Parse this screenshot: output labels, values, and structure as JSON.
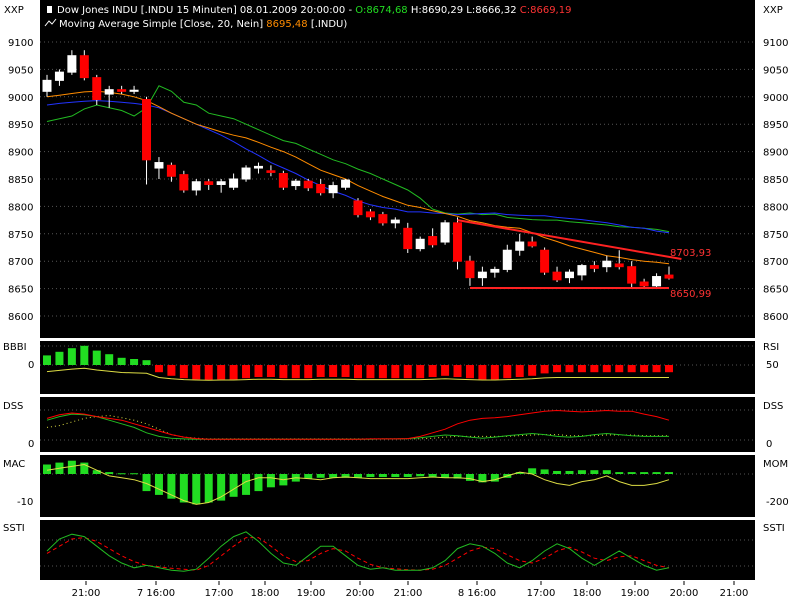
{
  "header": {
    "instrument": "Dow Jones INDU [.INDU  15 Minuten] 08.01.2009 20:00:00 - ",
    "open": "O:8674,68",
    "high": " H:8690,29",
    "low": " L:8666,32",
    "close": " C:8669,19",
    "ma_label": "Moving Average Simple [Close, 20, Nein] ",
    "ma_value": "8695,48",
    "ma_suffix": " [.INDU)"
  },
  "axis_corner_label": "XXP",
  "price_ticks": [
    9100,
    9050,
    9000,
    8950,
    8900,
    8850,
    8800,
    8750,
    8700,
    8650,
    8600
  ],
  "time_ticks": [
    "21:00",
    "7 16:00",
    "17:00",
    "18:00",
    "19:00",
    "20:00",
    "21:00",
    "8 16:00",
    "17:00",
    "18:00",
    "19:00",
    "20:00",
    "21:00"
  ],
  "annotations": {
    "resistance": "8703,93",
    "support": "8650,99"
  },
  "panels": [
    {
      "id": "bbbi",
      "left_label": "BBBI",
      "left_tick": "0",
      "right_label": "RSI",
      "right_tick": "50"
    },
    {
      "id": "dss",
      "left_label": "DSS",
      "left_tick": "0",
      "right_label": "DSS",
      "right_tick": "0"
    },
    {
      "id": "mac",
      "left_label": "MAC",
      "left_tick": "-10",
      "right_label": "MOM",
      "right_tick": "-200"
    },
    {
      "id": "ssti",
      "left_label": "SSTI",
      "left_tick": "",
      "right_label": "SSTI",
      "right_tick": ""
    }
  ],
  "colors": {
    "up": "#ffffff",
    "down": "#ff0000",
    "ma": "#ff8c00",
    "blue_line": "#2233ff",
    "green_line": "#22bb22",
    "hist_pos": "#22dd22",
    "hist_neg": "#ff0000",
    "trend": "#ff2222",
    "grid": "#555555"
  },
  "chart_data": {
    "type": "candlestick",
    "title": "Dow Jones INDU [.INDU  15 Minuten] 08.01.2009 20:00:00",
    "ylim": [
      8560,
      9140
    ],
    "candles": [
      [
        9010,
        9040,
        9000,
        9030
      ],
      [
        9030,
        9050,
        9020,
        9045
      ],
      [
        9045,
        9085,
        9040,
        9075
      ],
      [
        9075,
        9085,
        9030,
        9035
      ],
      [
        9035,
        9040,
        8985,
        8995
      ],
      [
        9005,
        9020,
        8980,
        9013
      ],
      [
        9013,
        9020,
        9005,
        9010
      ],
      [
        9010,
        9020,
        9005,
        9012
      ],
      [
        8995,
        9000,
        8840,
        8885
      ],
      [
        8870,
        8890,
        8850,
        8880
      ],
      [
        8875,
        8880,
        8845,
        8855
      ],
      [
        8858,
        8865,
        8825,
        8830
      ],
      [
        8830,
        8850,
        8820,
        8845
      ],
      [
        8845,
        8850,
        8830,
        8840
      ],
      [
        8840,
        8850,
        8825,
        8845
      ],
      [
        8835,
        8860,
        8830,
        8850
      ],
      [
        8850,
        8875,
        8845,
        8870
      ],
      [
        8870,
        8880,
        8860,
        8873
      ],
      [
        8865,
        8875,
        8855,
        8862
      ],
      [
        8860,
        8865,
        8830,
        8835
      ],
      [
        8838,
        8850,
        8830,
        8846
      ],
      [
        8846,
        8850,
        8828,
        8834
      ],
      [
        8840,
        8850,
        8820,
        8825
      ],
      [
        8825,
        8845,
        8815,
        8838
      ],
      [
        8835,
        8850,
        8830,
        8848
      ],
      [
        8810,
        8815,
        8780,
        8785
      ],
      [
        8790,
        8795,
        8775,
        8781
      ],
      [
        8785,
        8790,
        8765,
        8770
      ],
      [
        8770,
        8780,
        8760,
        8775
      ],
      [
        8760,
        8770,
        8715,
        8723
      ],
      [
        8723,
        8745,
        8718,
        8740
      ],
      [
        8745,
        8760,
        8725,
        8730
      ],
      [
        8735,
        8775,
        8730,
        8770
      ],
      [
        8770,
        8780,
        8685,
        8700
      ],
      [
        8700,
        8710,
        8655,
        8670
      ],
      [
        8670,
        8690,
        8655,
        8680
      ],
      [
        8680,
        8690,
        8670,
        8685
      ],
      [
        8685,
        8730,
        8680,
        8720
      ],
      [
        8720,
        8750,
        8710,
        8735
      ],
      [
        8735,
        8745,
        8725,
        8728
      ],
      [
        8720,
        8725,
        8675,
        8680
      ],
      [
        8680,
        8690,
        8662,
        8666
      ],
      [
        8670,
        8685,
        8660,
        8680
      ],
      [
        8675,
        8695,
        8665,
        8692
      ],
      [
        8692,
        8700,
        8680,
        8687
      ],
      [
        8690,
        8710,
        8680,
        8700
      ],
      [
        8695,
        8720,
        8685,
        8690
      ],
      [
        8690,
        8700,
        8650,
        8660
      ],
      [
        8662,
        8668,
        8650,
        8655
      ],
      [
        8655,
        8678,
        8650,
        8672
      ],
      [
        8674.68,
        8690.29,
        8666.32,
        8669.19
      ]
    ],
    "ma20": [
      9000,
      9003,
      9006,
      9009,
      9010,
      9008,
      9005,
      9000,
      8993,
      8982,
      8970,
      8960,
      8950,
      8943,
      8936,
      8930,
      8925,
      8917,
      8908,
      8900,
      8890,
      8878,
      8866,
      8858,
      8850,
      8838,
      8828,
      8818,
      8810,
      8802,
      8798,
      8792,
      8787,
      8782,
      8774,
      8770,
      8765,
      8762,
      8760,
      8752,
      8743,
      8736,
      8728,
      8722,
      8716,
      8710,
      8707,
      8703,
      8700,
      8698,
      8695.48
    ],
    "blue_series": [
      8985,
      8988,
      8990,
      8992,
      8993,
      8992,
      8990,
      8988,
      8985,
      8980,
      8970,
      8960,
      8950,
      8940,
      8930,
      8918,
      8905,
      8893,
      8880,
      8870,
      8860,
      8848,
      8838,
      8828,
      8820,
      8810,
      8803,
      8798,
      8795,
      8790,
      8790,
      8788,
      8787,
      8785,
      8786,
      8787,
      8788,
      8785,
      8784,
      8783,
      8783,
      8780,
      8778,
      8776,
      8773,
      8770,
      8766,
      8762,
      8760,
      8755,
      8752
    ],
    "green_series": [
      8955,
      8960,
      8965,
      8978,
      8985,
      8980,
      8975,
      8965,
      8980,
      9020,
      9010,
      8990,
      8985,
      8970,
      8965,
      8960,
      8950,
      8940,
      8930,
      8920,
      8915,
      8905,
      8895,
      8885,
      8878,
      8868,
      8860,
      8850,
      8840,
      8830,
      8815,
      8795,
      8788,
      8786,
      8788,
      8785,
      8786,
      8780,
      8778,
      8776,
      8775,
      8775,
      8772,
      8770,
      8768,
      8766,
      8763,
      8762,
      8760,
      8758,
      8754
    ],
    "trendline_resistance": [
      [
        33,
        8775
      ],
      [
        51,
        8703.93
      ]
    ],
    "trendline_support": [
      [
        34,
        8650.99
      ],
      [
        50,
        8650.99
      ]
    ],
    "bbbi": [
      0.4,
      0.55,
      0.7,
      0.8,
      0.6,
      0.45,
      0.3,
      0.25,
      0.2,
      -0.3,
      -0.45,
      -0.55,
      -0.6,
      -0.62,
      -0.6,
      -0.6,
      -0.55,
      -0.5,
      -0.5,
      -0.55,
      -0.55,
      -0.55,
      -0.5,
      -0.5,
      -0.5,
      -0.55,
      -0.55,
      -0.55,
      -0.55,
      -0.55,
      -0.55,
      -0.5,
      -0.45,
      -0.5,
      -0.55,
      -0.6,
      -0.6,
      -0.55,
      -0.5,
      -0.45,
      -0.35,
      -0.3,
      -0.3,
      -0.3,
      -0.3,
      -0.3,
      -0.3,
      -0.3,
      -0.3,
      -0.3,
      -0.3
    ],
    "dss_red": [
      0.6,
      0.7,
      0.75,
      0.72,
      0.65,
      0.6,
      0.55,
      0.45,
      0.35,
      0.25,
      0.15,
      0.08,
      0.04,
      0.02,
      0.02,
      0.02,
      0.02,
      0.02,
      0.02,
      0.02,
      0.02,
      0.02,
      0.02,
      0.02,
      0.02,
      0.02,
      0.03,
      0.03,
      0.03,
      0.04,
      0.1,
      0.2,
      0.3,
      0.45,
      0.55,
      0.6,
      0.62,
      0.65,
      0.7,
      0.75,
      0.8,
      0.82,
      0.8,
      0.78,
      0.8,
      0.82,
      0.8,
      0.8,
      0.72,
      0.65,
      0.55
    ],
    "dss_green": [
      0.55,
      0.65,
      0.72,
      0.7,
      0.65,
      0.55,
      0.45,
      0.35,
      0.2,
      0.1,
      0.05,
      0.03,
      0.02,
      0.02,
      0.02,
      0.02,
      0.02,
      0.02,
      0.02,
      0.02,
      0.02,
      0.02,
      0.02,
      0.02,
      0.02,
      0.02,
      0.02,
      0.03,
      0.03,
      0.04,
      0.06,
      0.1,
      0.14,
      0.12,
      0.08,
      0.05,
      0.08,
      0.12,
      0.15,
      0.18,
      0.15,
      0.1,
      0.08,
      0.1,
      0.15,
      0.18,
      0.15,
      0.12,
      0.1,
      0.1,
      0.1
    ],
    "dss_dotted": [
      0.35,
      0.4,
      0.5,
      0.6,
      0.65,
      0.68,
      0.62,
      0.55,
      0.45,
      0.3,
      0.15,
      0.08,
      0.05,
      0.03,
      0.03,
      0.03,
      0.03,
      0.03,
      0.03,
      0.03,
      0.03,
      0.03,
      0.03,
      0.03,
      0.03,
      0.03,
      0.03,
      0.03,
      0.03,
      0.03,
      0.03,
      0.05,
      0.08,
      0.1,
      0.1,
      0.1,
      0.1,
      0.1,
      0.12,
      0.14,
      0.15,
      0.15,
      0.12,
      0.12,
      0.12,
      0.14,
      0.14,
      0.14,
      0.12,
      0.12,
      0.12
    ],
    "mac_hist": [
      0.25,
      0.3,
      0.35,
      0.3,
      0.1,
      0.05,
      0.02,
      0.02,
      -0.45,
      -0.55,
      -0.65,
      -0.75,
      -0.8,
      -0.75,
      -0.7,
      -0.6,
      -0.55,
      -0.45,
      -0.35,
      -0.3,
      -0.2,
      -0.12,
      -0.1,
      -0.1,
      -0.1,
      -0.1,
      -0.08,
      -0.08,
      -0.08,
      -0.08,
      -0.06,
      -0.08,
      -0.1,
      -0.12,
      -0.18,
      -0.22,
      -0.2,
      -0.1,
      0.05,
      0.15,
      0.12,
      0.08,
      0.08,
      0.1,
      0.1,
      0.1,
      0.05,
      0.05,
      0.05,
      0.05,
      0.05
    ],
    "mac_line": [
      0.1,
      0.15,
      0.2,
      0.25,
      0.1,
      -0.05,
      -0.1,
      -0.15,
      -0.25,
      -0.4,
      -0.55,
      -0.7,
      -0.8,
      -0.75,
      -0.6,
      -0.4,
      -0.2,
      -0.1,
      -0.1,
      -0.15,
      -0.1,
      -0.12,
      -0.15,
      -0.1,
      -0.08,
      -0.1,
      -0.12,
      -0.12,
      -0.12,
      -0.12,
      -0.1,
      -0.08,
      -0.1,
      -0.1,
      -0.12,
      -0.2,
      -0.15,
      -0.05,
      0.05,
      0.0,
      -0.15,
      -0.25,
      -0.3,
      -0.2,
      -0.15,
      -0.05,
      -0.2,
      -0.3,
      -0.3,
      -0.25,
      -0.15
    ],
    "ssti_green": [
      0.5,
      0.75,
      0.85,
      0.8,
      0.6,
      0.4,
      0.25,
      0.15,
      0.2,
      0.15,
      0.1,
      0.08,
      0.12,
      0.35,
      0.6,
      0.8,
      0.9,
      0.7,
      0.45,
      0.25,
      0.2,
      0.4,
      0.6,
      0.6,
      0.4,
      0.2,
      0.12,
      0.15,
      0.1,
      0.1,
      0.1,
      0.15,
      0.3,
      0.55,
      0.65,
      0.6,
      0.45,
      0.25,
      0.15,
      0.3,
      0.5,
      0.65,
      0.55,
      0.35,
      0.2,
      0.35,
      0.5,
      0.35,
      0.2,
      0.1,
      0.15
    ],
    "ssti_red": [
      0.45,
      0.6,
      0.75,
      0.78,
      0.7,
      0.55,
      0.4,
      0.28,
      0.2,
      0.17,
      0.14,
      0.12,
      0.1,
      0.2,
      0.4,
      0.6,
      0.78,
      0.78,
      0.6,
      0.4,
      0.28,
      0.3,
      0.45,
      0.55,
      0.5,
      0.35,
      0.22,
      0.15,
      0.13,
      0.11,
      0.1,
      0.12,
      0.2,
      0.35,
      0.5,
      0.58,
      0.55,
      0.42,
      0.3,
      0.25,
      0.35,
      0.5,
      0.58,
      0.48,
      0.35,
      0.3,
      0.38,
      0.4,
      0.3,
      0.2,
      0.15
    ]
  }
}
